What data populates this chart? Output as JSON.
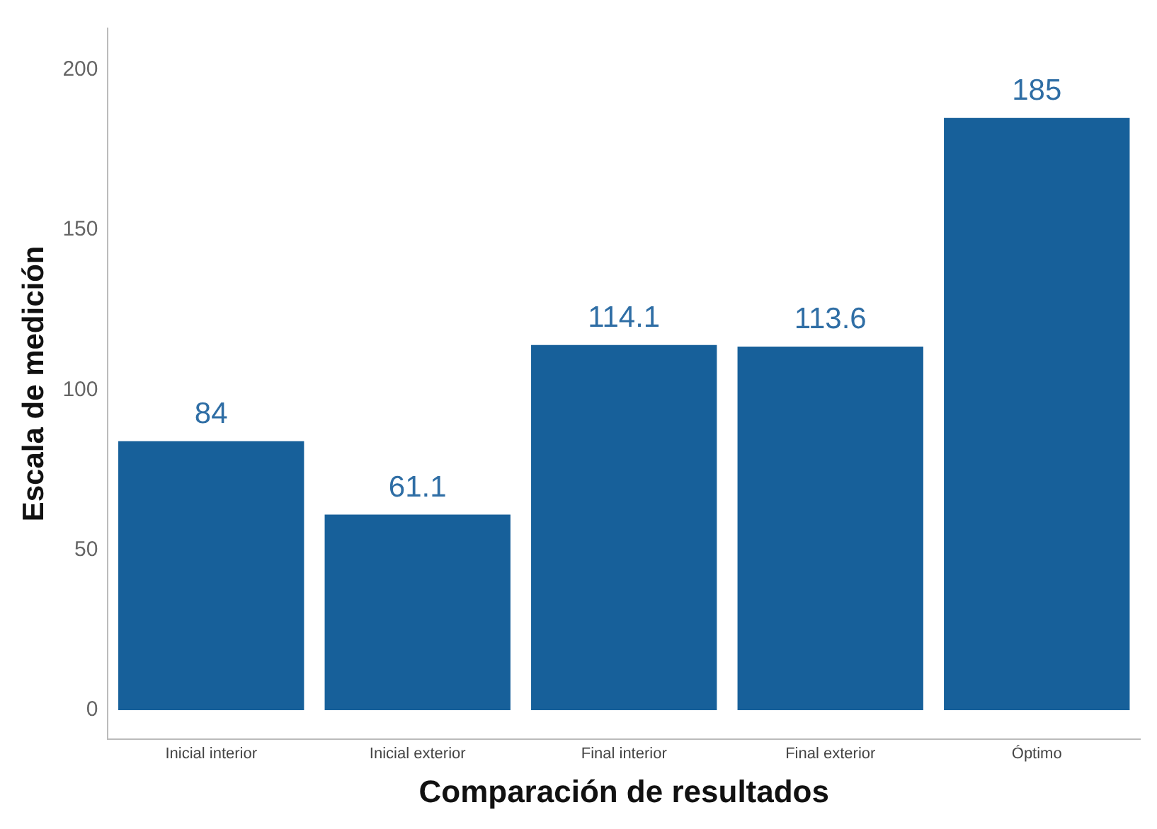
{
  "chart_data": {
    "type": "bar",
    "xlabel": "Comparación de resultados",
    "ylabel": "Escala de medición",
    "categories": [
      "Inicial interior",
      "Inicial exterior",
      "Final interior",
      "Final exterior",
      "Óptimo"
    ],
    "values": [
      84,
      61.1,
      114.1,
      113.6,
      185
    ],
    "color": "#17609a",
    "ylim": [
      -9,
      213
    ],
    "yticks": [
      0,
      50,
      100,
      150,
      200
    ],
    "grid": false,
    "data_labels": true
  }
}
